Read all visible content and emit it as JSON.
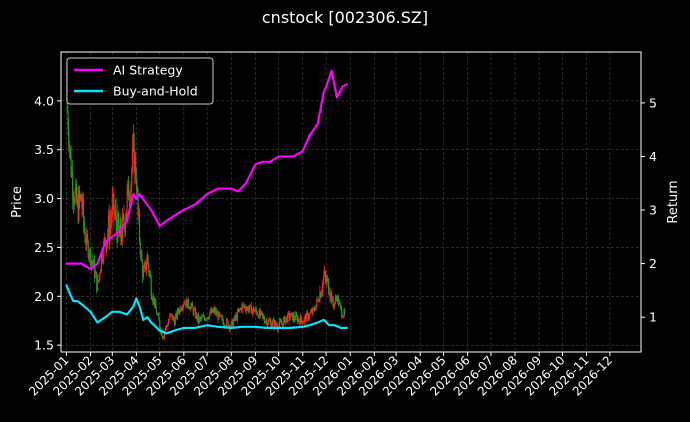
{
  "chart_data": {
    "type": "line",
    "title": "cnstock [002306.SZ]",
    "ylabel_left": "Price",
    "ylabel_right": "Return",
    "colors": {
      "background": "#000000",
      "ai_strategy": "#ff00ff",
      "buy_and_hold": "#00e5ff",
      "candle_up": "#ff2020",
      "candle_down": "#1f9a1f",
      "grid": "#444444"
    },
    "grid": true,
    "legend_placement": "top-left",
    "x_ticks": [
      "2025-01",
      "2025-02",
      "2025-03",
      "2025-04",
      "2025-05",
      "2025-06",
      "2025-07",
      "2025-08",
      "2025-09",
      "2025-10",
      "2025-11",
      "2025-12",
      "2026-01",
      "2026-02",
      "2026-03",
      "2026-04",
      "2026-05",
      "2026-06",
      "2026-07",
      "2026-08",
      "2026-09",
      "2026-10",
      "2026-11",
      "2026-12"
    ],
    "left_axis": {
      "ylim": [
        1.43,
        4.5
      ],
      "ticks": [
        1.5,
        2.0,
        2.5,
        3.0,
        3.5,
        4.0
      ]
    },
    "right_axis": {
      "ylim": [
        0.35,
        5.95
      ],
      "ticks": [
        1,
        2,
        3,
        4,
        5
      ]
    },
    "price_series": {
      "dates": [
        "2025-01-02",
        "2025-01-04",
        "2025-01-06",
        "2025-01-10",
        "2025-01-15",
        "2025-01-20",
        "2025-01-25",
        "2025-02-05",
        "2025-02-10",
        "2025-02-15",
        "2025-02-20",
        "2025-02-25",
        "2025-03-01",
        "2025-03-05",
        "2025-03-10",
        "2025-03-15",
        "2025-03-20",
        "2025-03-25",
        "2025-03-28",
        "2025-04-01",
        "2025-04-03",
        "2025-04-07",
        "2025-04-10",
        "2025-04-15",
        "2025-04-20",
        "2025-04-25",
        "2025-05-01",
        "2025-05-05",
        "2025-05-10",
        "2025-05-15",
        "2025-05-20",
        "2025-05-25",
        "2025-06-01",
        "2025-06-10",
        "2025-06-20",
        "2025-07-01",
        "2025-07-10",
        "2025-07-20",
        "2025-08-01",
        "2025-08-15",
        "2025-09-01",
        "2025-09-15",
        "2025-10-01",
        "2025-10-15",
        "2025-11-01",
        "2025-11-15",
        "2025-11-22",
        "2025-11-28",
        "2025-12-05",
        "2025-12-10",
        "2025-12-15",
        "2025-12-20",
        "2025-12-25"
      ],
      "close": [
        3.9,
        3.7,
        3.4,
        3.1,
        2.9,
        3.0,
        2.6,
        2.3,
        2.1,
        2.4,
        2.6,
        2.7,
        2.9,
        2.8,
        2.6,
        2.7,
        3.0,
        3.2,
        3.5,
        3.2,
        2.8,
        2.4,
        2.2,
        2.4,
        2.1,
        1.9,
        1.7,
        1.6,
        1.7,
        1.8,
        1.75,
        1.85,
        1.95,
        1.9,
        1.75,
        1.8,
        1.85,
        1.75,
        1.7,
        1.9,
        1.85,
        1.75,
        1.7,
        1.8,
        1.75,
        1.85,
        2.0,
        2.2,
        2.1,
        1.9,
        2.0,
        1.85,
        1.8
      ]
    },
    "series": [
      {
        "name": "AI Strategy",
        "x": [
          "2025-01-01",
          "2025-01-10",
          "2025-01-20",
          "2025-02-01",
          "2025-02-10",
          "2025-02-20",
          "2025-03-01",
          "2025-03-10",
          "2025-03-20",
          "2025-03-28",
          "2025-04-01",
          "2025-04-05",
          "2025-04-10",
          "2025-04-15",
          "2025-04-20",
          "2025-05-01",
          "2025-05-10",
          "2025-05-20",
          "2025-06-01",
          "2025-06-15",
          "2025-07-01",
          "2025-07-15",
          "2025-08-01",
          "2025-08-10",
          "2025-08-20",
          "2025-09-01",
          "2025-09-10",
          "2025-09-20",
          "2025-10-01",
          "2025-10-10",
          "2025-10-20",
          "2025-11-01",
          "2025-11-10",
          "2025-11-20",
          "2025-11-28",
          "2025-12-01",
          "2025-12-08",
          "2025-12-15",
          "2025-12-22",
          "2025-12-28"
        ],
        "values": [
          2.0,
          2.0,
          2.0,
          1.9,
          2.0,
          2.4,
          2.5,
          2.6,
          2.8,
          3.3,
          3.2,
          3.3,
          3.2,
          3.1,
          3.0,
          2.7,
          2.8,
          2.9,
          3.0,
          3.1,
          3.3,
          3.4,
          3.4,
          3.35,
          3.5,
          3.85,
          3.9,
          3.9,
          4.0,
          4.0,
          4.0,
          4.1,
          4.4,
          4.6,
          5.2,
          5.3,
          5.6,
          5.1,
          5.3,
          5.35
        ]
      },
      {
        "name": "Buy-and-Hold",
        "x": [
          "2025-01-01",
          "2025-01-05",
          "2025-01-10",
          "2025-01-15",
          "2025-01-20",
          "2025-02-01",
          "2025-02-10",
          "2025-02-20",
          "2025-03-01",
          "2025-03-10",
          "2025-03-20",
          "2025-03-28",
          "2025-04-01",
          "2025-04-05",
          "2025-04-10",
          "2025-04-15",
          "2025-04-20",
          "2025-05-01",
          "2025-05-10",
          "2025-05-20",
          "2025-06-01",
          "2025-06-15",
          "2025-07-01",
          "2025-07-15",
          "2025-08-01",
          "2025-08-15",
          "2025-09-01",
          "2025-09-15",
          "2025-10-01",
          "2025-10-15",
          "2025-11-01",
          "2025-11-10",
          "2025-11-20",
          "2025-11-28",
          "2025-12-05",
          "2025-12-12",
          "2025-12-20",
          "2025-12-28"
        ],
        "values": [
          1.6,
          1.45,
          1.3,
          1.3,
          1.25,
          1.1,
          0.9,
          1.0,
          1.1,
          1.1,
          1.05,
          1.2,
          1.35,
          1.2,
          0.95,
          1.0,
          0.9,
          0.75,
          0.7,
          0.75,
          0.8,
          0.8,
          0.85,
          0.82,
          0.8,
          0.82,
          0.82,
          0.8,
          0.8,
          0.8,
          0.82,
          0.85,
          0.9,
          0.95,
          0.85,
          0.85,
          0.8,
          0.8
        ]
      }
    ]
  }
}
